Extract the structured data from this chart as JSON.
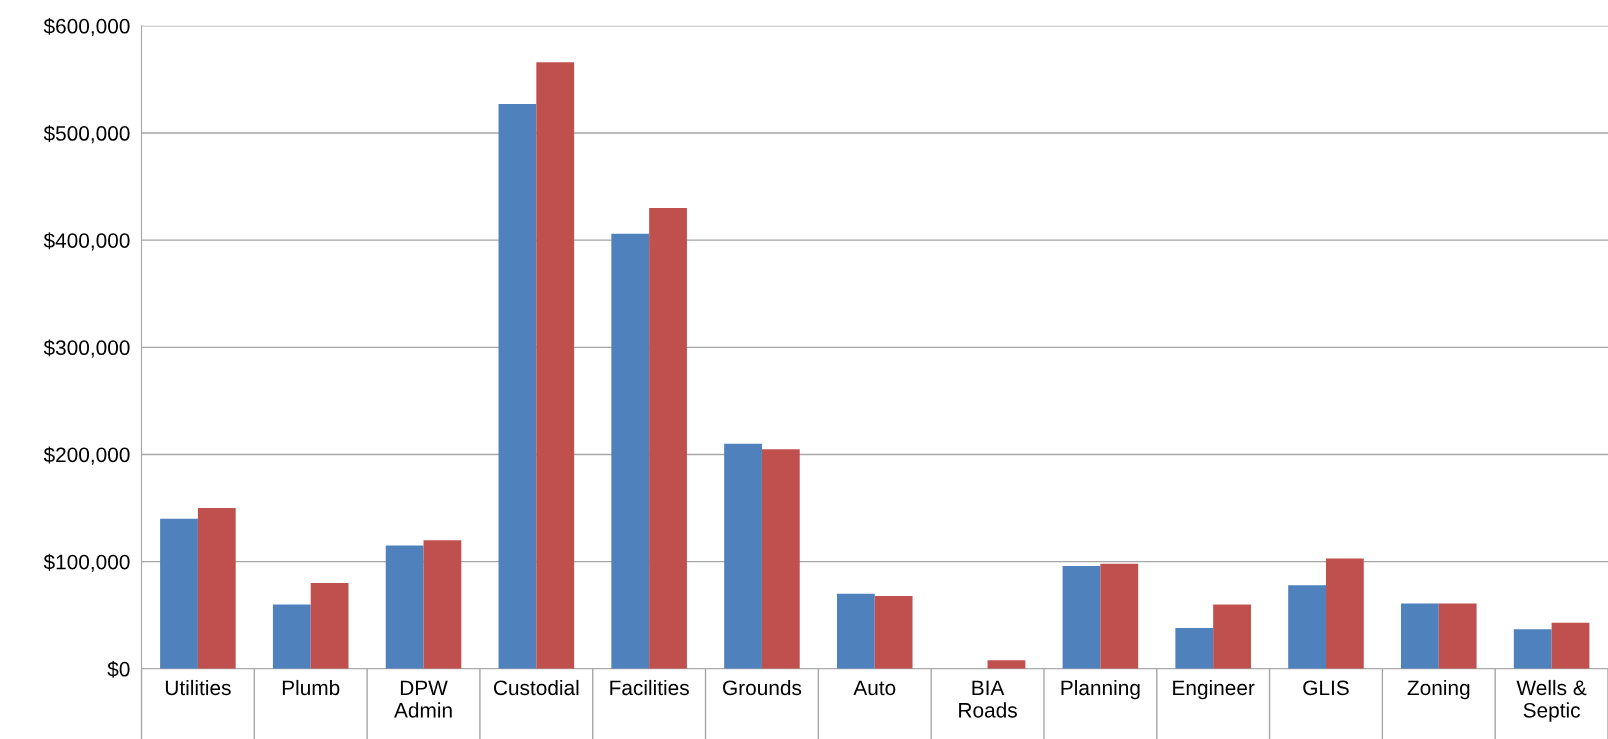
{
  "chart_data": {
    "type": "bar",
    "categories": [
      "Utilities",
      "Plumb",
      "DPW\nAdmin",
      "Custodial",
      "Facilities",
      "Grounds",
      "Auto",
      "BIA\nRoads",
      "Planning",
      "Engineer",
      "GLIS",
      "Zoning",
      "Wells &\nSeptic"
    ],
    "series": [
      {
        "color": "#4f81bd",
        "values": [
          140000,
          60000,
          115000,
          527000,
          406000,
          210000,
          70000,
          0,
          96000,
          38000,
          78000,
          61000,
          37000
        ]
      },
      {
        "color": "#c0504d",
        "values": [
          150000,
          80000,
          120000,
          566000,
          430000,
          205000,
          68000,
          8000,
          98000,
          60000,
          103000,
          61000,
          43000
        ]
      }
    ],
    "ylim": [
      0,
      600000
    ],
    "yticks": [
      {
        "value": 0,
        "label": "$0"
      },
      {
        "value": 100000,
        "label": "$100,000"
      },
      {
        "value": 200000,
        "label": "$200,000"
      },
      {
        "value": 300000,
        "label": "$300,000"
      },
      {
        "value": 400000,
        "label": "$400,000"
      },
      {
        "value": 500000,
        "label": "$500,000"
      },
      {
        "value": 600000,
        "label": "$600,000"
      }
    ],
    "grid": "y"
  }
}
